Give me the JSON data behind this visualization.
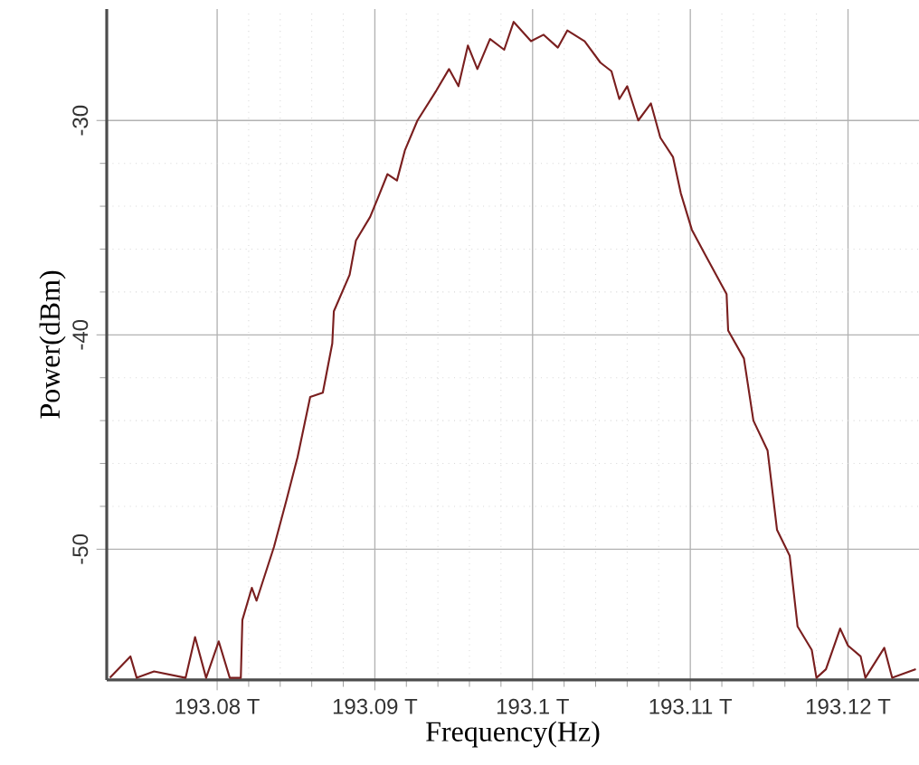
{
  "chart_data": {
    "type": "line",
    "xlabel": "Frequency(Hz)",
    "ylabel": "Power(dBm)",
    "xlim": [
      193.073,
      193.1245
    ],
    "ylim": [
      -56.1,
      -24.8
    ],
    "xticks": [
      {
        "value": 193.08,
        "label": "193.08 T"
      },
      {
        "value": 193.09,
        "label": "193.09 T"
      },
      {
        "value": 193.1,
        "label": "193.1 T"
      },
      {
        "value": 193.11,
        "label": "193.11 T"
      },
      {
        "value": 193.12,
        "label": "193.12 T"
      }
    ],
    "yticks": [
      -50,
      -40,
      -30
    ],
    "grid": true,
    "line_style": "solid",
    "marker": "none",
    "series": [
      {
        "color": "#7a1f1f",
        "x": [
          193.0732,
          193.0745,
          193.0749,
          193.076,
          193.078,
          193.0786,
          193.0793,
          193.0801,
          193.0808,
          193.0815,
          193.0816,
          193.0822,
          193.0825,
          193.0836,
          193.0844,
          193.0851,
          193.0859,
          193.0867,
          193.0873,
          193.0874,
          193.0884,
          193.0888,
          193.0897,
          193.0902,
          193.0908,
          193.0914,
          193.0919,
          193.0927,
          193.0939,
          193.0947,
          193.0953,
          193.0959,
          193.0965,
          193.0973,
          193.0982,
          193.0988,
          193.0999,
          193.1007,
          193.1016,
          193.1022,
          193.1033,
          193.1043,
          193.105,
          193.1055,
          193.106,
          193.1067,
          193.1075,
          193.1081,
          193.1089,
          193.1094,
          193.1101,
          193.1109,
          193.1123,
          193.1124,
          193.1134,
          193.114,
          193.1149,
          193.1155,
          193.1163,
          193.1168,
          193.1177,
          193.118,
          193.1186,
          193.1195,
          193.12,
          193.1208,
          193.1211,
          193.1223,
          193.1228,
          193.1243
        ],
        "values": [
          -56.0,
          -55.0,
          -56.0,
          -55.7,
          -56.0,
          -54.1,
          -56.0,
          -54.3,
          -56.0,
          -56.0,
          -53.3,
          -51.8,
          -52.4,
          -49.9,
          -47.7,
          -45.7,
          -42.9,
          -42.7,
          -40.4,
          -38.9,
          -37.2,
          -35.6,
          -34.5,
          -33.6,
          -32.5,
          -32.8,
          -31.4,
          -30.0,
          -28.6,
          -27.6,
          -28.4,
          -26.5,
          -27.6,
          -26.2,
          -26.7,
          -25.4,
          -26.3,
          -26.0,
          -26.6,
          -25.8,
          -26.3,
          -27.3,
          -27.7,
          -29.0,
          -28.4,
          -30.0,
          -29.2,
          -30.8,
          -31.7,
          -33.4,
          -35.1,
          -36.2,
          -38.1,
          -39.8,
          -41.1,
          -44.0,
          -45.4,
          -49.1,
          -50.3,
          -53.6,
          -54.7,
          -56.0,
          -55.6,
          -53.7,
          -54.5,
          -55.0,
          -56.0,
          -54.6,
          -56.0,
          -55.6
        ]
      }
    ]
  }
}
